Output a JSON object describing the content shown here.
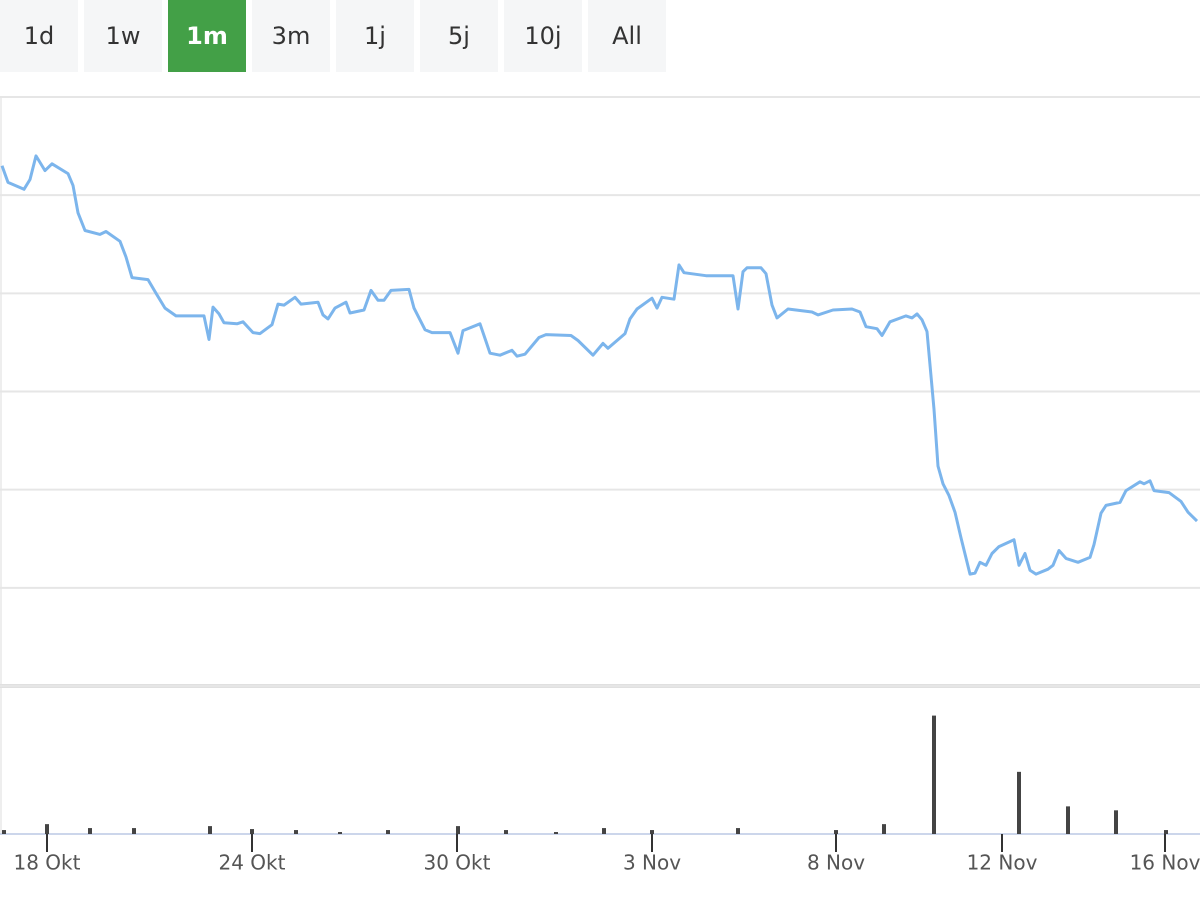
{
  "range_buttons": {
    "labels": [
      "1d",
      "1w",
      "1m",
      "3m",
      "1j",
      "5j",
      "10j",
      "All"
    ],
    "active": 2,
    "active_color": "#43a047"
  },
  "chart_data": [
    {
      "type": "line",
      "color": "#7cb5ec",
      "grid": true,
      "xlim": [
        0,
        120
      ],
      "ylim": [
        0,
        600
      ],
      "yticks": [
        0,
        100,
        200,
        300,
        400,
        500,
        600
      ],
      "x": [
        0.2,
        0.8,
        2.4,
        3.0,
        3.6,
        4.5,
        5.2,
        6.8,
        7.3,
        7.8,
        8.5,
        10.0,
        10.6,
        12.0,
        12.6,
        13.2,
        14.8,
        15.6,
        16.5,
        17.6,
        20.4,
        20.9,
        21.3,
        21.9,
        22.4,
        23.7,
        24.3,
        25.3,
        26.0,
        27.2,
        27.8,
        28.4,
        29.5,
        30.1,
        31.8,
        32.3,
        32.8,
        33.5,
        34.6,
        35.0,
        36.4,
        37.1,
        37.8,
        38.4,
        39.1,
        40.9,
        41.4,
        42.5,
        43.2,
        45.0,
        45.8,
        46.3,
        48.0,
        48.6,
        49.0,
        50.0,
        51.2,
        51.7,
        52.5,
        53.9,
        54.6,
        57.1,
        57.8,
        59.3,
        60.3,
        60.8,
        62.5,
        63.0,
        63.7,
        65.2,
        65.7,
        66.2,
        67.4,
        67.9,
        68.4,
        70.6,
        73.3,
        73.8,
        74.3,
        74.7,
        76.1,
        76.6,
        77.2,
        77.7,
        78.8,
        81.2,
        81.8,
        83.3,
        85.2,
        86.0,
        86.6,
        87.7,
        88.2,
        89.0,
        90.6,
        91.2,
        91.7,
        92.2,
        92.7,
        93.4,
        93.8,
        94.3,
        94.9,
        95.5,
        96.1,
        97.0,
        97.5,
        98.0,
        98.6,
        99.2,
        99.9,
        101.4,
        101.9,
        102.5,
        103.0,
        103.6,
        104.8,
        105.3,
        105.9,
        106.6,
        107.8,
        109.0,
        109.4,
        110.1,
        110.6,
        112.0,
        112.6,
        114.0,
        114.4,
        115.0,
        115.4,
        116.9,
        118.1,
        118.8,
        119.7
      ],
      "values": [
        530,
        513,
        506,
        516,
        540,
        525,
        532,
        522,
        510,
        482,
        464,
        460,
        463,
        453,
        437,
        416,
        414,
        400,
        385,
        377,
        377,
        353,
        386,
        379,
        370,
        369,
        371,
        360,
        359,
        368,
        389,
        388,
        396,
        389,
        391,
        378,
        374,
        385,
        391,
        380,
        383,
        403,
        393,
        393,
        403,
        404,
        385,
        363,
        360,
        360,
        339,
        362,
        369,
        351,
        339,
        337,
        342,
        336,
        338,
        355,
        358,
        357,
        352,
        337,
        349,
        344,
        359,
        374,
        384,
        395,
        385,
        396,
        394,
        429,
        421,
        418,
        418,
        384,
        422,
        426,
        426,
        420,
        388,
        375,
        384,
        381,
        378,
        383,
        384,
        381,
        366,
        364,
        357,
        371,
        377,
        375,
        379,
        373,
        361,
        282,
        224,
        206,
        194,
        177,
        151,
        114,
        115,
        126,
        123,
        135,
        142,
        149,
        123,
        135,
        118,
        114,
        119,
        123,
        138,
        130,
        126,
        131,
        144,
        176,
        184,
        187,
        199,
        208,
        206,
        209,
        199,
        197,
        188,
        177,
        168
      ]
    },
    {
      "type": "bar",
      "color": "#444444",
      "xlim": [
        0,
        120
      ],
      "ylim": [
        0,
        150
      ],
      "xticks": [
        {
          "value": 4.7,
          "label": "18 Okt"
        },
        {
          "value": 25.2,
          "label": "24 Okt"
        },
        {
          "value": 45.7,
          "label": "30 Okt"
        },
        {
          "value": 65.2,
          "label": "3 Nov"
        },
        {
          "value": 83.6,
          "label": "8 Nov"
        },
        {
          "value": 100.2,
          "label": "12 Nov"
        },
        {
          "value": 116.5,
          "label": "16 Nov"
        }
      ],
      "x": [
        0.4,
        4.7,
        9.0,
        13.4,
        21.0,
        25.2,
        29.6,
        34.0,
        38.8,
        45.8,
        50.6,
        55.6,
        60.4,
        65.2,
        73.8,
        83.6,
        88.4,
        93.4,
        101.9,
        106.8,
        111.6,
        116.6
      ],
      "values": [
        4,
        10,
        6,
        6,
        8,
        5,
        4,
        2,
        4,
        8,
        4,
        2,
        6,
        4,
        6,
        4,
        10,
        120,
        63,
        28,
        24,
        4
      ]
    }
  ]
}
